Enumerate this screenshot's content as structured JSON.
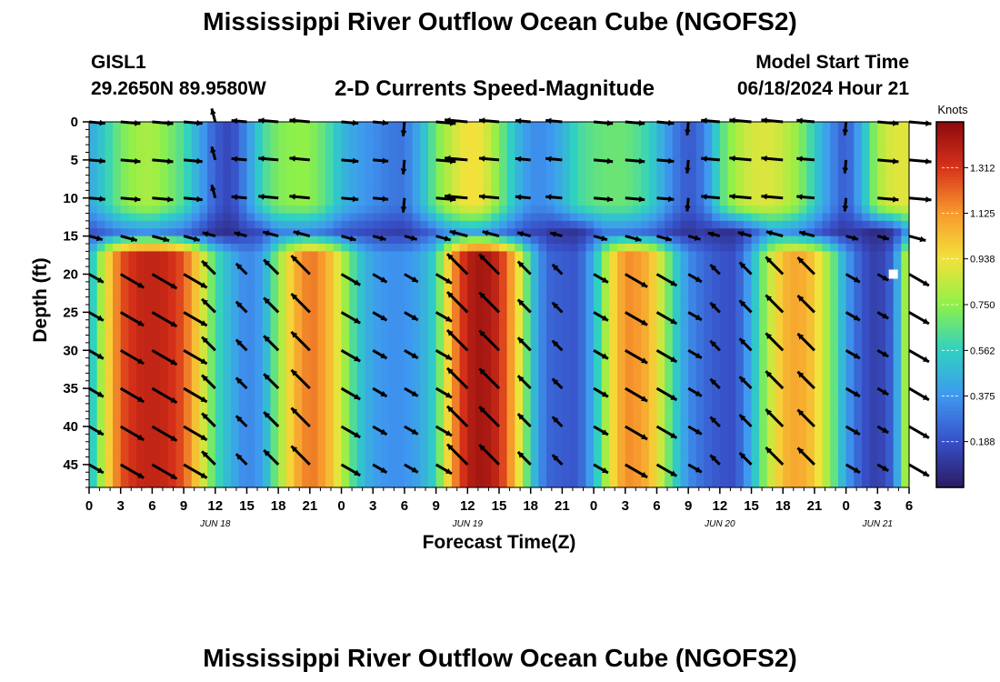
{
  "header": {
    "title": "Mississippi River Outflow Ocean Cube (NGOFS2)",
    "station_id": "GISL1",
    "station_coords": "29.2650N  89.9580W",
    "plot_title": "2-D Currents Speed-Magnitude",
    "start_label": "Model Start Time",
    "start_value": "06/18/2024 Hour 21"
  },
  "footer": {
    "title": "Mississippi River Outflow Ocean Cube (NGOFS2)"
  },
  "colors": {
    "arrow": "#000000",
    "marker": "#ffffff"
  },
  "chart_data": {
    "type": "heatmap",
    "xlabel": "Forecast Time(Z)",
    "ylabel": "Depth (ft)",
    "x_unit": "hours since 06/18/2024 00Z",
    "x_range": [
      0,
      78
    ],
    "x_tick_labels": [
      "0",
      "3",
      "6",
      "9",
      "12",
      "15",
      "18",
      "21",
      "0",
      "3",
      "6",
      "9",
      "12",
      "15",
      "18",
      "21",
      "0",
      "3",
      "6",
      "9",
      "12",
      "15",
      "18",
      "21",
      "0",
      "3",
      "6"
    ],
    "date_labels": [
      {
        "label": "JUN 18",
        "x": 12
      },
      {
        "label": "JUN 19",
        "x": 36
      },
      {
        "label": "JUN 20",
        "x": 60
      },
      {
        "label": "JUN 21",
        "x": 75
      }
    ],
    "y_range": [
      0,
      48
    ],
    "y_ticks": [
      0,
      5,
      10,
      15,
      20,
      25,
      30,
      35,
      40,
      45
    ],
    "colorbar": {
      "unit": "Knots",
      "min": 0.0,
      "max": 1.5,
      "tick_labels": [
        "1.312",
        "1.125",
        "0.938",
        "0.750",
        "0.562",
        "0.375",
        "0.188"
      ],
      "stops": [
        "#2b1a63",
        "#3850c8",
        "#3f98f0",
        "#2fd1c2",
        "#8ff048",
        "#f3e23a",
        "#f79a2d",
        "#d8321a",
        "#8c0a0c"
      ]
    },
    "speed_field": {
      "time_hours": [
        0,
        1.5,
        3,
        4.5,
        6,
        7.5,
        9,
        10.5,
        12,
        13.5,
        15,
        16.5,
        18,
        19.5,
        21,
        22.5,
        24,
        25.5,
        27,
        28.5,
        30,
        31.5,
        33,
        34.5,
        36,
        37.5,
        39,
        40.5,
        42,
        43.5,
        45,
        46.5,
        48,
        49.5,
        51,
        52.5,
        54,
        55.5,
        57,
        58.5,
        60,
        61.5,
        63,
        64.5,
        66,
        67.5,
        69,
        70.5,
        72,
        73.5,
        75,
        76.5,
        78
      ],
      "depth_ft": [
        0,
        4,
        8,
        12,
        16,
        20,
        24,
        28,
        32,
        36,
        40,
        44,
        48
      ],
      "surface_speed_knots": [
        0.42,
        0.55,
        0.7,
        0.78,
        0.8,
        0.72,
        0.62,
        0.42,
        0.22,
        0.15,
        0.35,
        0.6,
        0.72,
        0.75,
        0.75,
        0.65,
        0.48,
        0.4,
        0.35,
        0.3,
        0.28,
        0.45,
        0.7,
        0.85,
        0.95,
        0.92,
        0.72,
        0.5,
        0.35,
        0.35,
        0.45,
        0.6,
        0.66,
        0.68,
        0.68,
        0.62,
        0.5,
        0.32,
        0.2,
        0.3,
        0.62,
        0.8,
        0.88,
        0.9,
        0.85,
        0.75,
        0.55,
        0.35,
        0.2,
        0.45,
        0.8,
        0.9,
        0.9
      ],
      "deep_speed_knots": [
        0.45,
        0.9,
        1.25,
        1.35,
        1.38,
        1.35,
        1.25,
        0.95,
        0.62,
        0.45,
        0.32,
        0.4,
        0.75,
        1.05,
        1.2,
        1.1,
        0.85,
        0.55,
        0.4,
        0.36,
        0.36,
        0.42,
        0.58,
        1.1,
        1.4,
        1.45,
        1.35,
        1.05,
        0.55,
        0.25,
        0.22,
        0.2,
        0.45,
        0.9,
        1.15,
        1.12,
        0.95,
        0.6,
        0.35,
        0.25,
        0.2,
        0.18,
        0.45,
        0.8,
        1.05,
        1.1,
        1.0,
        0.75,
        0.4,
        0.2,
        0.12,
        0.25,
        0.95
      ]
    },
    "vectors": {
      "note": "arrow direction in degrees from +x (east) clockwise on screen; speed from field",
      "times": [
        0,
        3,
        6,
        9,
        12,
        15,
        18,
        21,
        24,
        27,
        30,
        33,
        36,
        39,
        42,
        45,
        48,
        51,
        54,
        57,
        60,
        63,
        66,
        69,
        72,
        75,
        78
      ],
      "depths": [
        0,
        5,
        10,
        15,
        20,
        25,
        30,
        35,
        40,
        45
      ]
    },
    "marker": {
      "x": 76.5,
      "y": 20
    }
  }
}
